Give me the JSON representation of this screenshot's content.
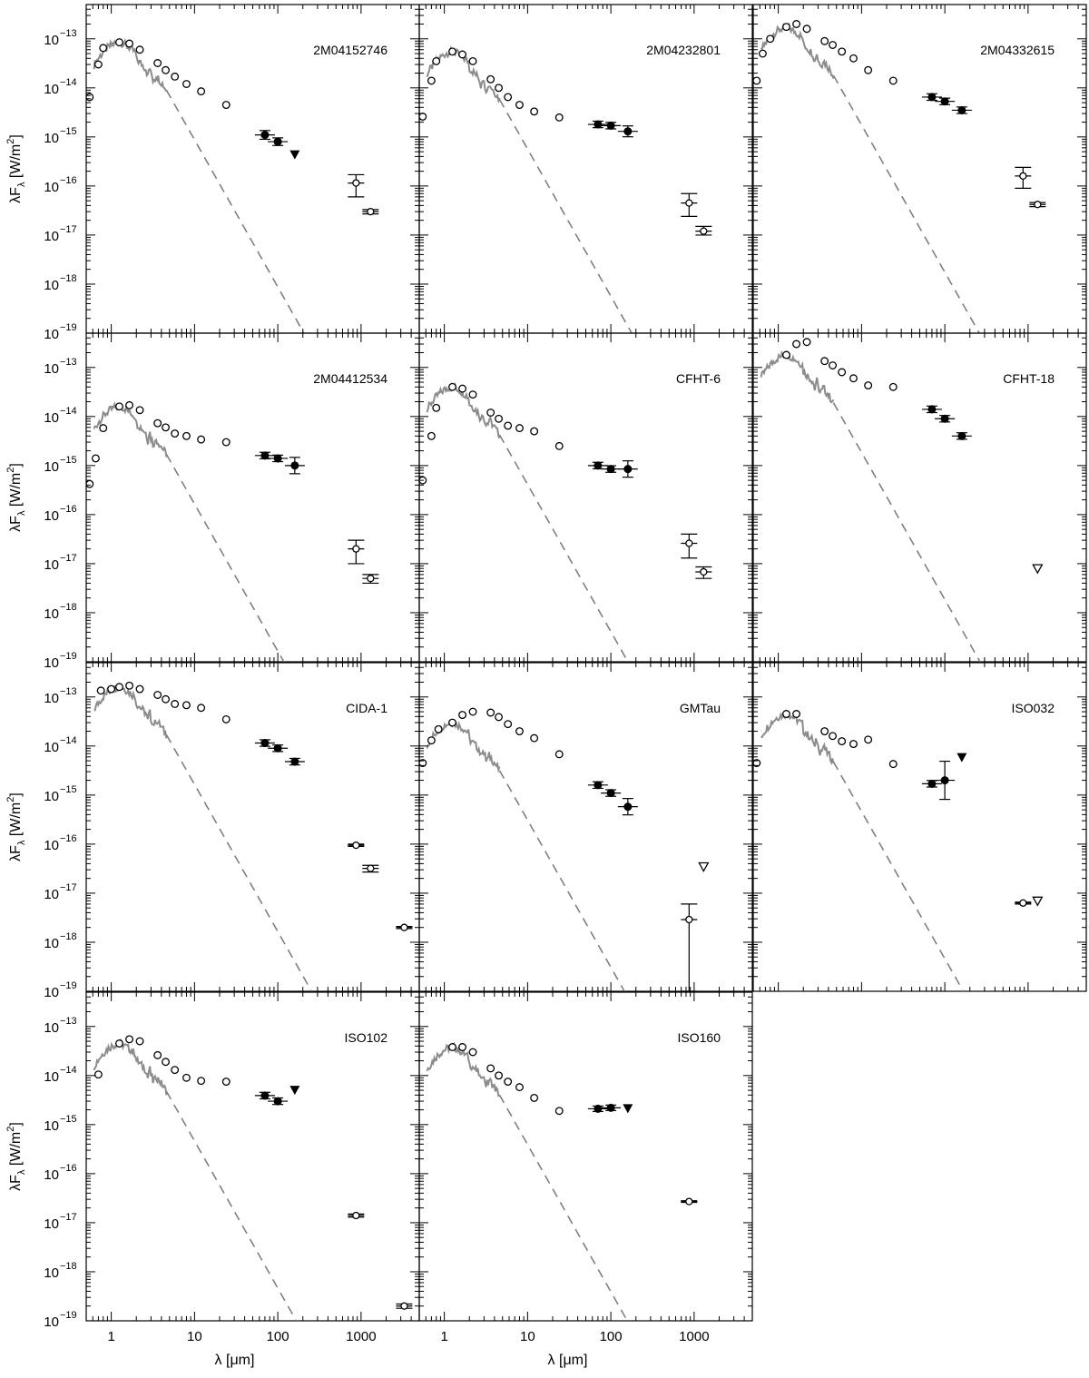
{
  "figure": {
    "ylabel_main": "λF",
    "ylabel_sub": "λ",
    "ylabel_unit": "[W/m",
    "ylabel_sup": "2",
    "ylabel_close": "]",
    "xlabel": "λ [μm]",
    "xlim": [
      0.5,
      5000
    ],
    "ylim": [
      1e-19,
      5e-13
    ],
    "xscale": "log",
    "yscale": "log",
    "x_tick_labels": [
      {
        "v": 1,
        "t": "1"
      },
      {
        "v": 10,
        "t": "10"
      },
      {
        "v": 100,
        "t": "100"
      },
      {
        "v": 1000,
        "t": "1000"
      }
    ],
    "y_tick_labels": [
      {
        "e": -13,
        "t": "10",
        "sup": "−13"
      },
      {
        "e": -14,
        "t": "10",
        "sup": "−14"
      },
      {
        "e": -15,
        "t": "10",
        "sup": "−15"
      },
      {
        "e": -16,
        "t": "10",
        "sup": "−16"
      },
      {
        "e": -17,
        "t": "10",
        "sup": "−17"
      },
      {
        "e": -18,
        "t": "10",
        "sup": "−18"
      },
      {
        "e": -19,
        "t": "10",
        "sup": "−19"
      }
    ],
    "colors": {
      "photosphere": "#8c8c8c",
      "blackbody": "#808080",
      "marker": "#000000"
    }
  },
  "chart_data": [
    {
      "type": "scatter",
      "title": "2M04152746",
      "photosphere_peak": [
        1.3,
        8.5e-14
      ],
      "open_points": [
        [
          0.55,
          6.5e-15
        ],
        [
          0.7,
          3e-14
        ],
        [
          0.8,
          6.5e-14
        ],
        [
          1.25,
          8.5e-14
        ],
        [
          1.65,
          8e-14
        ],
        [
          2.2,
          6e-14
        ],
        [
          3.6,
          3.2e-14
        ],
        [
          4.5,
          2.3e-14
        ],
        [
          5.8,
          1.7e-14
        ],
        [
          8,
          1.2e-14
        ],
        [
          12,
          8.5e-15
        ],
        [
          24,
          4.5e-15
        ]
      ],
      "filled_points": [
        [
          70,
          1.1e-15,
          0.08,
          0.08
        ],
        [
          100,
          8e-16,
          0.07,
          0.07
        ]
      ],
      "upper_limits": [
        [
          160,
          4.3e-16
        ]
      ],
      "mm_points": [
        [
          870,
          1.15e-16,
          1.7e-16,
          6e-17
        ],
        [
          1300,
          3e-17,
          3.3e-17,
          2.7e-17
        ]
      ],
      "mm_upper_limits": []
    },
    {
      "type": "scatter",
      "title": "2M04232801",
      "photosphere_peak": [
        1.3,
        5.5e-14
      ],
      "open_points": [
        [
          0.55,
          2.6e-15
        ],
        [
          0.7,
          1.4e-14
        ],
        [
          0.8,
          3.5e-14
        ],
        [
          1.25,
          5.5e-14
        ],
        [
          1.65,
          4.8e-14
        ],
        [
          2.2,
          3.5e-14
        ],
        [
          3.6,
          1.5e-14
        ],
        [
          4.5,
          1e-14
        ],
        [
          5.8,
          6.5e-15
        ],
        [
          8,
          4.5e-15
        ],
        [
          12,
          3.3e-15
        ],
        [
          24,
          2.5e-15
        ]
      ],
      "filled_points": [
        [
          70,
          1.8e-15,
          0.06,
          0.06
        ],
        [
          100,
          1.7e-15,
          0.06,
          0.06
        ],
        [
          160,
          1.3e-15,
          0.1,
          0.1
        ]
      ],
      "upper_limits": [],
      "mm_points": [
        [
          870,
          4.5e-17,
          7e-17,
          2.4e-17
        ],
        [
          1300,
          1.2e-17,
          1.5e-17,
          1e-17
        ]
      ],
      "mm_upper_limits": []
    },
    {
      "type": "scatter",
      "title": "2M04332615",
      "photosphere_peak": [
        1.3,
        1.7e-13
      ],
      "open_points": [
        [
          0.55,
          1.4e-14
        ],
        [
          0.65,
          5e-14
        ],
        [
          0.8,
          1e-13
        ],
        [
          1.25,
          1.75e-13
        ],
        [
          1.65,
          2e-13
        ],
        [
          2.2,
          1.6e-13
        ],
        [
          3.6,
          9e-14
        ],
        [
          4.5,
          7.5e-14
        ],
        [
          5.8,
          5.5e-14
        ],
        [
          8,
          4e-14
        ],
        [
          12,
          2.3e-14
        ],
        [
          24,
          1.4e-14
        ]
      ],
      "filled_points": [
        [
          70,
          6.5e-15,
          0.06,
          0.06
        ],
        [
          100,
          5.3e-15,
          0.06,
          0.06
        ],
        [
          160,
          3.5e-15,
          0.06,
          0.06
        ]
      ],
      "upper_limits": [],
      "mm_points": [
        [
          870,
          1.6e-16,
          2.4e-16,
          9e-17
        ],
        [
          1300,
          4.2e-17,
          4.6e-17,
          3.8e-17
        ]
      ],
      "mm_upper_limits": []
    },
    {
      "type": "scatter",
      "title": "2M04412534",
      "photosphere_peak": [
        1.3,
        1.6e-14
      ],
      "open_points": [
        [
          0.55,
          4.2e-16
        ],
        [
          0.65,
          1.4e-15
        ],
        [
          0.8,
          5.8e-15
        ],
        [
          1.25,
          1.6e-14
        ],
        [
          1.65,
          1.7e-14
        ],
        [
          2.2,
          1.35e-14
        ],
        [
          3.6,
          7.3e-15
        ],
        [
          4.5,
          6e-15
        ],
        [
          5.8,
          4.5e-15
        ],
        [
          8,
          4e-15
        ],
        [
          12,
          3.4e-15
        ],
        [
          24,
          3e-15
        ]
      ],
      "filled_points": [
        [
          70,
          1.6e-15,
          0.06,
          0.06
        ],
        [
          100,
          1.4e-15,
          0.06,
          0.06
        ],
        [
          160,
          1e-15,
          0.15,
          0.15
        ]
      ],
      "upper_limits": [],
      "mm_points": [
        [
          870,
          2e-17,
          3e-17,
          1e-17
        ],
        [
          1300,
          5e-18,
          6e-18,
          4e-18
        ]
      ],
      "mm_upper_limits": []
    },
    {
      "type": "scatter",
      "title": "CFHT-6",
      "photosphere_peak": [
        1.3,
        4e-14
      ],
      "open_points": [
        [
          0.55,
          5e-16
        ],
        [
          0.7,
          4e-15
        ],
        [
          0.8,
          1.5e-14
        ],
        [
          1.25,
          4e-14
        ],
        [
          1.65,
          3.7e-14
        ],
        [
          2.2,
          2.8e-14
        ],
        [
          3.6,
          1.2e-14
        ],
        [
          4.5,
          9e-15
        ],
        [
          5.8,
          6.5e-15
        ],
        [
          8,
          5.8e-15
        ],
        [
          12,
          5e-15
        ],
        [
          24,
          2.5e-15
        ]
      ],
      "filled_points": [
        [
          70,
          1e-15,
          0.06,
          0.06
        ],
        [
          100,
          8.5e-16,
          0.06,
          0.06
        ],
        [
          160,
          8.5e-16,
          0.15,
          0.15
        ]
      ],
      "upper_limits": [],
      "mm_points": [
        [
          870,
          2.6e-17,
          4e-17,
          1.3e-17
        ],
        [
          1300,
          6.8e-18,
          8.6e-18,
          5e-18
        ]
      ],
      "mm_upper_limits": []
    },
    {
      "type": "scatter",
      "title": "CFHT-18",
      "photosphere_peak": [
        1.3,
        1.8e-13
      ],
      "open_points": [
        [
          1.25,
          1.8e-13
        ],
        [
          1.65,
          3e-13
        ],
        [
          2.2,
          3.3e-13
        ],
        [
          3.6,
          1.35e-13
        ],
        [
          4.5,
          1.1e-13
        ],
        [
          5.8,
          8e-14
        ],
        [
          8,
          6e-14
        ],
        [
          12,
          4.3e-14
        ],
        [
          24,
          4e-14
        ]
      ],
      "filled_points": [
        [
          70,
          1.4e-14,
          0.06,
          0.06
        ],
        [
          100,
          9e-15,
          0.06,
          0.06
        ],
        [
          160,
          4e-15,
          0.06,
          0.06
        ]
      ],
      "upper_limits": [],
      "mm_points": [],
      "mm_upper_limits": [
        [
          1300,
          8e-18
        ]
      ]
    },
    {
      "type": "scatter",
      "title": "CIDA-1",
      "photosphere_peak": [
        1.3,
        1.6e-13
      ],
      "open_points": [
        [
          0.75,
          1.35e-13
        ],
        [
          1,
          1.45e-13
        ],
        [
          1.25,
          1.6e-13
        ],
        [
          1.65,
          1.7e-13
        ],
        [
          2.2,
          1.45e-13
        ],
        [
          3.6,
          1.1e-13
        ],
        [
          4.5,
          9e-14
        ],
        [
          5.8,
          7.2e-14
        ],
        [
          8,
          6.8e-14
        ],
        [
          12,
          6e-14
        ],
        [
          24,
          3.5e-14
        ]
      ],
      "filled_points": [
        [
          70,
          1.15e-14,
          0.06,
          0.06
        ],
        [
          100,
          9e-15,
          0.06,
          0.06
        ],
        [
          160,
          4.8e-15,
          0.06,
          0.06
        ]
      ],
      "upper_limits": [],
      "mm_points": [
        [
          870,
          9.5e-17,
          1e-16,
          9e-17
        ],
        [
          1300,
          3.2e-17,
          3.7e-17,
          2.7e-17
        ],
        [
          3300,
          2e-18,
          2.1e-18,
          1.9e-18
        ]
      ],
      "mm_upper_limits": []
    },
    {
      "type": "scatter",
      "title": "GMTau",
      "photosphere_peak": [
        1.3,
        3e-14
      ],
      "open_points": [
        [
          0.55,
          4.5e-15
        ],
        [
          0.7,
          1.3e-14
        ],
        [
          0.85,
          2.2e-14
        ],
        [
          1.25,
          3e-14
        ],
        [
          1.65,
          4.3e-14
        ],
        [
          2.2,
          5e-14
        ],
        [
          3.6,
          4.8e-14
        ],
        [
          4.5,
          3.9e-14
        ],
        [
          5.8,
          2.8e-14
        ],
        [
          8,
          2e-14
        ],
        [
          12,
          1.45e-14
        ],
        [
          24,
          6.8e-15
        ]
      ],
      "filled_points": [
        [
          70,
          1.6e-15,
          0.06,
          0.06
        ],
        [
          100,
          1.1e-15,
          0.06,
          0.06
        ],
        [
          160,
          5.8e-16,
          0.15,
          0.15
        ]
      ],
      "upper_limits": [],
      "mm_points": [
        [
          870,
          2.9e-18,
          6e-18,
          1e-19
        ]
      ],
      "mm_upper_limits": [
        [
          1300,
          3.5e-17
        ]
      ]
    },
    {
      "type": "scatter",
      "title": "ISO032",
      "photosphere_peak": [
        1.3,
        4.5e-14
      ],
      "open_points": [
        [
          0.55,
          4.5e-15
        ],
        [
          1.25,
          4.5e-14
        ],
        [
          1.65,
          4.5e-14
        ],
        [
          3.6,
          2e-14
        ],
        [
          4.5,
          1.6e-14
        ],
        [
          5.8,
          1.25e-14
        ],
        [
          8,
          1.1e-14
        ],
        [
          12,
          1.35e-14
        ],
        [
          24,
          4.3e-15
        ]
      ],
      "filled_points": [
        [
          70,
          1.7e-15,
          0.06,
          0.06
        ],
        [
          100,
          2e-15,
          0.35,
          0.35
        ]
      ],
      "upper_limits": [
        [
          160,
          5.8e-15
        ]
      ],
      "mm_points": [
        [
          870,
          6.3e-18,
          6.6e-18,
          6e-18
        ]
      ],
      "mm_upper_limits": [
        [
          1300,
          7e-18
        ]
      ]
    },
    {
      "type": "scatter",
      "title": "ISO102",
      "photosphere_peak": [
        1.3,
        4.5e-14
      ],
      "open_points": [
        [
          0.7,
          1.05e-14
        ],
        [
          1.25,
          4.5e-14
        ],
        [
          1.65,
          5.5e-14
        ],
        [
          2.2,
          5e-14
        ],
        [
          3.6,
          2.6e-14
        ],
        [
          4.5,
          1.9e-14
        ],
        [
          5.8,
          1.3e-14
        ],
        [
          8,
          9e-15
        ],
        [
          12,
          7.8e-15
        ],
        [
          24,
          7.5e-15
        ]
      ],
      "filled_points": [
        [
          70,
          3.9e-15,
          0.06,
          0.06
        ],
        [
          100,
          3e-15,
          0.06,
          0.06
        ]
      ],
      "upper_limits": [
        [
          160,
          5e-15
        ]
      ],
      "mm_points": [
        [
          870,
          1.4e-17,
          1.5e-17,
          1.3e-17
        ],
        [
          3300,
          2e-19,
          2.2e-19,
          1.8e-19
        ]
      ],
      "mm_upper_limits": []
    },
    {
      "type": "scatter",
      "title": "ISO160",
      "photosphere_peak": [
        1.3,
        3.8e-14
      ],
      "open_points": [
        [
          1.25,
          3.8e-14
        ],
        [
          1.65,
          3.8e-14
        ],
        [
          2.2,
          3e-14
        ],
        [
          3.6,
          1.4e-14
        ],
        [
          4.5,
          1e-14
        ],
        [
          5.8,
          7.5e-15
        ],
        [
          8,
          5.8e-15
        ],
        [
          12,
          3.5e-15
        ],
        [
          24,
          1.9e-15
        ]
      ],
      "filled_points": [
        [
          70,
          2.1e-15,
          0.05,
          0.05
        ],
        [
          100,
          2.2e-15,
          0.05,
          0.05
        ]
      ],
      "upper_limits": [
        [
          160,
          2.1e-15
        ]
      ],
      "mm_points": [
        [
          870,
          2.7e-17,
          2.8e-17,
          2.6e-17
        ]
      ],
      "mm_upper_limits": []
    }
  ]
}
